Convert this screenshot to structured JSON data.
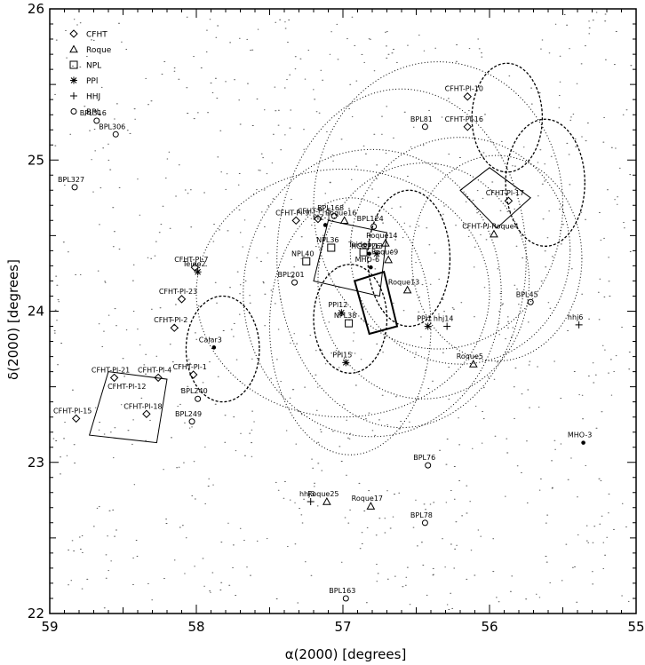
{
  "chart_data": {
    "type": "scatter",
    "xlabel": "α(2000) [degrees]",
    "ylabel": "δ(2000) [degrees]",
    "xlim": [
      59,
      55
    ],
    "ylim": [
      22,
      26
    ],
    "x_ticks": [
      59,
      58,
      57,
      56,
      55
    ],
    "x_tick_labels": [
      "59",
      "58",
      "57",
      "56",
      "55"
    ],
    "y_ticks": [
      22,
      23,
      24,
      25,
      26
    ],
    "y_tick_labels": [
      "22",
      "23",
      "24",
      "25",
      "26"
    ],
    "legend": {
      "placement": "top-left",
      "entries": [
        {
          "name": "CFHT",
          "marker": "diamond"
        },
        {
          "name": "Roque",
          "marker": "triangle"
        },
        {
          "name": "NPL",
          "marker": "square"
        },
        {
          "name": "PPl",
          "marker": "asterisk"
        },
        {
          "name": "HHJ",
          "marker": "plus"
        },
        {
          "name": "BPL",
          "marker": "circle"
        }
      ]
    },
    "objects": [
      {
        "label": "BPL316",
        "marker": "circle",
        "x": 58.68,
        "y": 25.26
      },
      {
        "label": "BPL306",
        "marker": "circle",
        "x": 58.55,
        "y": 25.17
      },
      {
        "label": "BPL327",
        "marker": "circle",
        "x": 58.83,
        "y": 24.82
      },
      {
        "label": "CFHT-Pl-10",
        "marker": "diamond",
        "x": 56.15,
        "y": 25.42
      },
      {
        "label": "BPL81",
        "marker": "circle",
        "x": 56.44,
        "y": 25.22
      },
      {
        "label": "CFHT-Pl-16",
        "marker": "diamond",
        "x": 56.15,
        "y": 25.22
      },
      {
        "label": "CFHT-Pl-17",
        "marker": "diamond",
        "x": 55.87,
        "y": 24.73
      },
      {
        "label": "CFHT-Pl-9",
        "marker": "diamond",
        "x": 57.32,
        "y": 24.6
      },
      {
        "label": "CFHT-Pl-5",
        "marker": "diamond",
        "x": 57.17,
        "y": 24.61
      },
      {
        "label": "BPL168",
        "marker": "circle",
        "x": 57.06,
        "y": 24.63
      },
      {
        "label": "BPL124",
        "marker": "circle",
        "x": 56.79,
        "y": 24.56
      },
      {
        "label": "Roque16",
        "marker": "triangle",
        "x": 56.99,
        "y": 24.6
      },
      {
        "label": "PIZ-1",
        "marker": "dot",
        "x": 57.12,
        "y": 24.57
      },
      {
        "label": "CFHT-Pl-7",
        "marker": "diamond",
        "x": 58.01,
        "y": 24.29
      },
      {
        "label": "Teide2",
        "marker": "asterisk",
        "x": 57.99,
        "y": 24.26
      },
      {
        "label": "NPL36",
        "marker": "square",
        "x": 57.08,
        "y": 24.42
      },
      {
        "label": "NPL40",
        "marker": "square",
        "x": 57.25,
        "y": 24.33
      },
      {
        "label": "BPL201",
        "marker": "circle",
        "x": 57.33,
        "y": 24.19
      },
      {
        "label": "PPl13",
        "marker": "asterisk",
        "x": 56.77,
        "y": 24.38
      },
      {
        "label": "Teide1",
        "marker": "square",
        "x": 56.86,
        "y": 24.39
      },
      {
        "label": "HCG226",
        "marker": "dot",
        "x": 56.82,
        "y": 24.38
      },
      {
        "label": "Roque14",
        "marker": "triangle",
        "x": 56.71,
        "y": 24.45
      },
      {
        "label": "Roque9",
        "marker": "triangle",
        "x": 56.69,
        "y": 24.34
      },
      {
        "label": "MHO-6",
        "marker": "dot",
        "x": 56.81,
        "y": 24.29
      },
      {
        "label": "Roque13",
        "marker": "triangle",
        "x": 56.56,
        "y": 24.14
      },
      {
        "label": "CFHT-Pl-Roque4",
        "marker": "triangle",
        "x": 55.97,
        "y": 24.51
      },
      {
        "label": "BPL45",
        "marker": "circle",
        "x": 55.72,
        "y": 24.06
      },
      {
        "label": "CFHT-Pl-23",
        "marker": "diamond",
        "x": 58.1,
        "y": 24.08
      },
      {
        "label": "CFHT-Pl-2",
        "marker": "diamond",
        "x": 58.15,
        "y": 23.89
      },
      {
        "label": "PPl12",
        "marker": "asterisk",
        "x": 57.01,
        "y": 23.99
      },
      {
        "label": "NPL38",
        "marker": "square",
        "x": 56.96,
        "y": 23.92
      },
      {
        "label": "PPl1",
        "marker": "asterisk",
        "x": 56.42,
        "y": 23.9
      },
      {
        "label": "hhj14",
        "marker": "plus",
        "x": 56.29,
        "y": 23.9
      },
      {
        "label": "hhj6",
        "marker": "plus",
        "x": 55.39,
        "y": 23.91
      },
      {
        "label": "Calar3",
        "marker": "dot",
        "x": 57.88,
        "y": 23.76
      },
      {
        "label": "PPl15",
        "marker": "asterisk",
        "x": 56.98,
        "y": 23.66
      },
      {
        "label": "Roque5",
        "marker": "triangle",
        "x": 56.11,
        "y": 23.65
      },
      {
        "label": "CFHT-Pl-21",
        "marker": "diamond",
        "x": 58.56,
        "y": 23.56
      },
      {
        "label": "CFHT-Pl-4",
        "marker": "diamond",
        "x": 58.26,
        "y": 23.56
      },
      {
        "label": "CFHT-Pl-1",
        "marker": "diamond",
        "x": 58.02,
        "y": 23.58
      },
      {
        "label": "CFHT-Pl-12",
        "marker": "none",
        "x": 58.45,
        "y": 23.45
      },
      {
        "label": "BPL240",
        "marker": "circle",
        "x": 57.99,
        "y": 23.42
      },
      {
        "label": "CFHT-Pl-18",
        "marker": "diamond",
        "x": 58.34,
        "y": 23.32
      },
      {
        "label": "CFHT-Pl-15",
        "marker": "diamond",
        "x": 58.82,
        "y": 23.29
      },
      {
        "label": "BPL249",
        "marker": "circle",
        "x": 58.03,
        "y": 23.27
      },
      {
        "label": "MHO-3",
        "marker": "dot",
        "x": 55.36,
        "y": 23.13
      },
      {
        "label": "BPL76",
        "marker": "circle",
        "x": 56.42,
        "y": 22.98
      },
      {
        "label": "hhj3",
        "marker": "plus",
        "x": 57.22,
        "y": 22.74
      },
      {
        "label": "Roque25",
        "marker": "triangle",
        "x": 57.11,
        "y": 22.74
      },
      {
        "label": "Roque17",
        "marker": "triangle",
        "x": 56.81,
        "y": 22.71
      },
      {
        "label": "BPL78",
        "marker": "circle",
        "x": 56.44,
        "y": 22.6
      },
      {
        "label": "BPL163",
        "marker": "circle",
        "x": 56.98,
        "y": 22.1
      }
    ]
  }
}
